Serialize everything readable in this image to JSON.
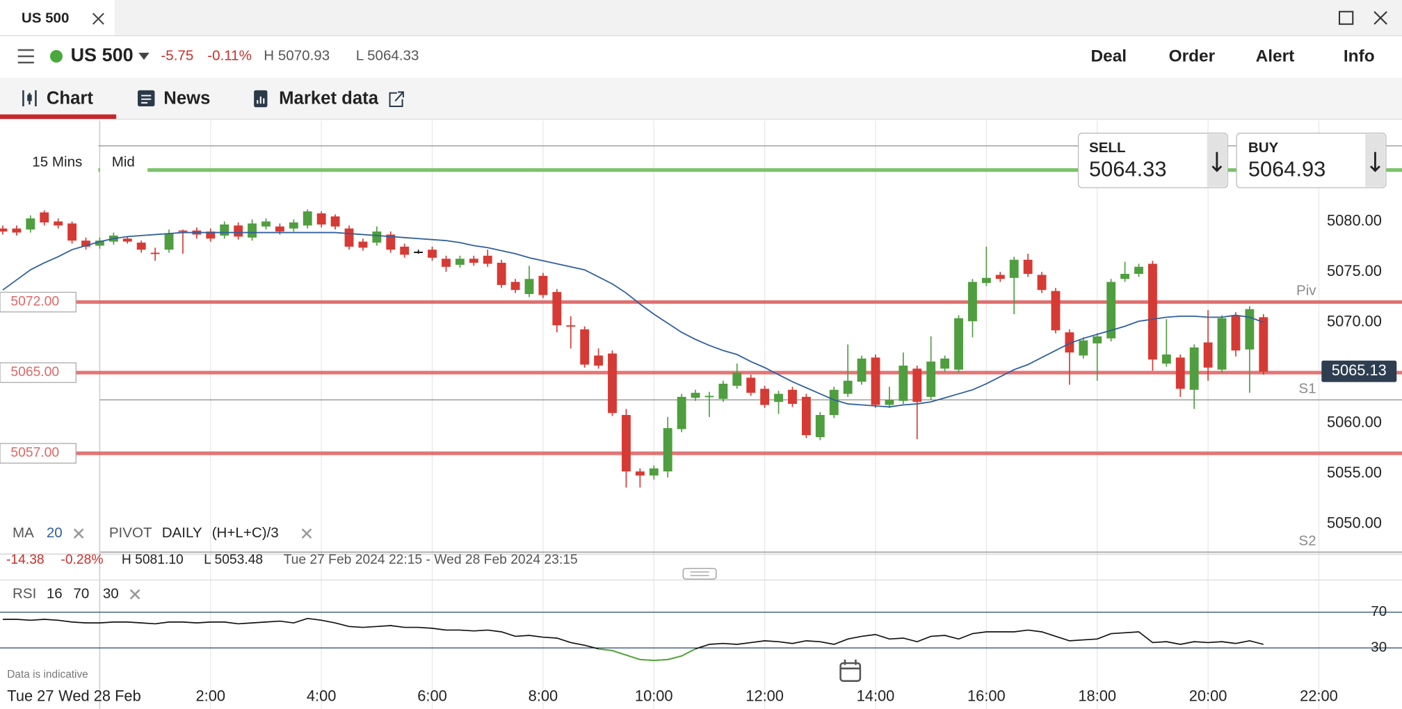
{
  "window": {
    "tab": "US 500"
  },
  "header": {
    "instrument": "US 500",
    "change": "-5.75",
    "change_pct": "-0.11%",
    "high": "H 5070.93",
    "low": "L 5064.33",
    "actions": [
      "Deal",
      "Order",
      "Alert",
      "Info"
    ]
  },
  "tabs": [
    "Chart",
    "News",
    "Market data"
  ],
  "controls": {
    "interval": "15 Mins",
    "price": "Mid"
  },
  "quote": {
    "sell_label": "SELL",
    "sell": "5064.33",
    "buy_label": "BUY",
    "buy": "5064.93"
  },
  "footer_note": "Data is indicative",
  "chart_data": {
    "type": "candlestick",
    "x": [
      -1.75,
      -1.5,
      -1.25,
      -1,
      -0.75,
      -0.5,
      -0.25,
      0,
      0.25,
      0.5,
      0.75,
      1,
      1.25,
      1.5,
      1.75,
      2,
      2.25,
      2.5,
      2.75,
      3,
      3.25,
      3.5,
      3.75,
      4,
      4.25,
      4.5,
      4.75,
      5,
      5.25,
      5.5,
      5.75,
      6,
      6.25,
      6.5,
      6.75,
      7,
      7.25,
      7.5,
      7.75,
      8,
      8.25,
      8.5,
      8.75,
      9,
      9.25,
      9.5,
      9.75,
      10,
      10.25,
      10.5,
      10.75,
      11,
      11.25,
      11.5,
      11.75,
      12,
      12.25,
      12.5,
      12.75,
      13,
      13.25,
      13.5,
      13.75,
      14,
      14.25,
      14.5,
      14.75,
      15,
      15.25,
      15.5,
      15.75,
      16,
      16.25,
      16.5,
      16.75,
      17,
      17.25,
      17.5,
      17.75,
      18,
      18.25,
      18.5,
      18.75,
      19,
      19.25,
      19.5,
      19.75,
      20,
      20.25,
      20.5,
      20.75,
      21
    ],
    "open": [
      5079.3,
      5079.3,
      5079.2,
      5080.9,
      5080.0,
      5079.8,
      5078.1,
      5077.6,
      5078.0,
      5078.3,
      5077.9,
      5076.9,
      5077.2,
      5079.1,
      5079.1,
      5079.0,
      5078.6,
      5079.6,
      5078.4,
      5079.5,
      5079.5,
      5079.3,
      5079.6,
      5080.8,
      5080.5,
      5079.3,
      5078.0,
      5077.9,
      5078.7,
      5077.5,
      5077.0,
      5077.2,
      5076.3,
      5075.7,
      5076.3,
      5076.6,
      5075.9,
      5074.0,
      5072.8,
      5074.6,
      5073.0,
      5069.7,
      5069.3,
      5066.7,
      5066.9,
      5060.8,
      5055.2,
      5054.8,
      5055.2,
      5059.4,
      5062.5,
      5062.6,
      5062.4,
      5063.7,
      5064.5,
      5063.4,
      5062.1,
      5063.3,
      5062.6,
      5058.6,
      5060.8,
      5062.9,
      5064.1,
      5066.5,
      5061.8,
      5062.2,
      5065.4,
      5062.6,
      5065.4,
      5065.3,
      5070.1,
      5073.9,
      5074.7,
      5074.4,
      5076.2,
      5074.7,
      5073.1,
      5069.0,
      5066.7,
      5067.9,
      5068.4,
      5074.3,
      5074.8,
      5075.8,
      5065.9,
      5066.5,
      5063.3,
      5068.0,
      5065.3,
      5070.7,
      5067.3,
      5070.5
    ],
    "high": [
      5079.6,
      5079.6,
      5080.6,
      5081.1,
      5080.3,
      5080.0,
      5078.4,
      5078.4,
      5078.9,
      5078.5,
      5078.1,
      5077.4,
      5079.2,
      5079.2,
      5079.4,
      5079.3,
      5080.0,
      5079.9,
      5080.2,
      5080.3,
      5079.8,
      5080.2,
      5081.2,
      5081.0,
      5080.7,
      5079.6,
      5078.3,
      5079.5,
      5079.0,
      5077.8,
      5077.2,
      5077.5,
      5076.6,
      5076.6,
      5076.6,
      5077.2,
      5076.2,
      5074.3,
      5075.6,
      5074.9,
      5073.3,
      5070.6,
      5069.6,
      5067.4,
      5067.2,
      5061.4,
      5055.5,
      5055.8,
      5060.6,
      5062.9,
      5063.3,
      5063.1,
      5064.2,
      5065.9,
      5064.8,
      5063.7,
      5063.2,
      5063.6,
      5062.9,
      5061.1,
      5063.6,
      5067.8,
      5066.7,
      5066.8,
      5063.6,
      5067.0,
      5065.7,
      5068.6,
      5066.7,
      5070.7,
      5074.3,
      5077.5,
      5075.0,
      5076.5,
      5076.8,
      5075.0,
      5073.4,
      5069.3,
      5068.5,
      5068.9,
      5074.3,
      5076.0,
      5075.8,
      5076.1,
      5070.3,
      5066.8,
      5067.8,
      5071.2,
      5070.7,
      5071.0,
      5071.6,
      5070.8
    ],
    "low": [
      5078.7,
      5078.6,
      5078.9,
      5079.6,
      5079.3,
      5077.8,
      5077.2,
      5077.3,
      5077.7,
      5077.8,
      5076.9,
      5076.1,
      5076.9,
      5076.8,
      5078.3,
      5078.0,
      5078.3,
      5078.2,
      5078.1,
      5079.2,
      5078.7,
      5079.0,
      5079.3,
      5079.4,
      5079.2,
      5077.2,
      5077.1,
      5077.6,
      5076.9,
      5076.4,
      5076.8,
      5076.1,
      5075.0,
      5075.4,
      5075.6,
      5075.5,
      5073.4,
      5072.9,
      5072.5,
      5072.4,
      5069.0,
      5067.4,
      5065.5,
      5065.4,
      5060.7,
      5053.6,
      5053.6,
      5054.4,
      5054.6,
      5059.1,
      5062.2,
      5060.6,
      5062.1,
      5063.4,
      5062.7,
      5061.5,
      5060.9,
      5061.6,
      5058.5,
      5058.3,
      5060.5,
      5062.6,
      5063.8,
      5061.5,
      5061.5,
      5061.9,
      5058.4,
      5062.3,
      5065.1,
      5065.0,
      5068.5,
      5073.6,
      5074.0,
      5070.8,
      5074.5,
      5072.9,
      5068.9,
      5063.8,
      5066.4,
      5064.2,
      5068.1,
      5074.0,
      5074.5,
      5065.2,
      5065.6,
      5062.6,
      5061.4,
      5064.2,
      5065.0,
      5066.6,
      5063.0,
      5064.8
    ],
    "close": [
      5079.0,
      5078.9,
      5080.3,
      5079.9,
      5079.6,
      5078.1,
      5077.5,
      5078.1,
      5078.6,
      5078.0,
      5077.2,
      5076.8,
      5078.8,
      5079.0,
      5078.7,
      5078.3,
      5079.7,
      5078.5,
      5079.8,
      5080.0,
      5079.0,
      5079.9,
      5081.0,
      5079.7,
      5079.5,
      5077.5,
      5077.4,
      5079.0,
      5077.2,
      5076.7,
      5077.0,
      5076.4,
      5075.5,
      5076.3,
      5075.9,
      5075.8,
      5073.7,
      5073.2,
      5074.3,
      5072.7,
      5069.7,
      5069.6,
      5065.8,
      5065.7,
      5061.0,
      5055.2,
      5054.8,
      5055.5,
      5059.5,
      5062.6,
      5063.0,
      5062.7,
      5063.9,
      5065.0,
      5063.0,
      5061.8,
      5062.9,
      5061.9,
      5058.8,
      5060.8,
      5063.3,
      5064.2,
      5066.4,
      5061.8,
      5062.3,
      5065.7,
      5062.1,
      5066.1,
      5066.4,
      5070.4,
      5074.0,
      5074.4,
      5074.3,
      5076.2,
      5074.8,
      5073.2,
      5069.2,
      5067.0,
      5068.2,
      5068.6,
      5074.0,
      5074.8,
      5075.5,
      5066.3,
      5066.8,
      5063.4,
      5067.5,
      5065.5,
      5070.4,
      5067.2,
      5071.3,
      5065.1
    ],
    "up_color": "#4f9e3f",
    "down_color": "#d63a34",
    "xlim": [
      -1.8,
      23.5
    ],
    "xticks": [
      {
        "value": 0,
        "label": "Wed 28 Feb"
      },
      {
        "value": 2,
        "label": "2:00"
      },
      {
        "value": 4,
        "label": "4:00"
      },
      {
        "value": 6,
        "label": "6:00"
      },
      {
        "value": 8,
        "label": "8:00"
      },
      {
        "value": 10,
        "label": "10:00"
      },
      {
        "value": 12,
        "label": "12:00"
      },
      {
        "value": 14,
        "label": "14:00"
      },
      {
        "value": 16,
        "label": "16:00"
      },
      {
        "value": 18,
        "label": "18:00"
      },
      {
        "value": 20,
        "label": "20:00"
      },
      {
        "value": 22,
        "label": "22:00"
      }
    ],
    "x_start_label": "Tue 27",
    "xgrid": true,
    "ylim": [
      5047,
      5090
    ],
    "yticks": [
      {
        "value": 5050,
        "label": "5050.00"
      },
      {
        "value": 5055,
        "label": "5055.00"
      },
      {
        "value": 5060,
        "label": "5060.00"
      },
      {
        "value": 5065,
        "label": "5065.00"
      },
      {
        "value": 5070,
        "label": "5070.00"
      },
      {
        "value": 5075,
        "label": "5075.00"
      },
      {
        "value": 5080,
        "label": "5080.00"
      }
    ],
    "ma": {
      "label": "MA",
      "period": 20,
      "color": "#2f5f9e",
      "values": [
        5073.2,
        5074.2,
        5075.2,
        5075.9,
        5076.5,
        5077.2,
        5077.6,
        5078.0,
        5078.3,
        5078.5,
        5078.6,
        5078.7,
        5078.8,
        5078.9,
        5078.9,
        5078.9,
        5078.9,
        5078.9,
        5078.9,
        5078.9,
        5078.9,
        5078.9,
        5078.9,
        5078.9,
        5078.9,
        5078.8,
        5078.7,
        5078.6,
        5078.5,
        5078.4,
        5078.3,
        5078.2,
        5078.1,
        5077.9,
        5077.6,
        5077.4,
        5077.1,
        5076.8,
        5076.4,
        5076.1,
        5075.8,
        5075.5,
        5075.2,
        5074.5,
        5073.8,
        5072.9,
        5071.8,
        5070.8,
        5069.9,
        5069.0,
        5068.3,
        5067.7,
        5067.2,
        5066.8,
        5066.1,
        5065.5,
        5064.8,
        5064.1,
        5063.5,
        5062.9,
        5062.3,
        5061.9,
        5061.8,
        5061.7,
        5061.6,
        5061.8,
        5061.9,
        5062.1,
        5062.5,
        5062.9,
        5063.3,
        5063.9,
        5064.6,
        5065.3,
        5065.8,
        5066.5,
        5067.2,
        5067.9,
        5068.4,
        5068.8,
        5069.2,
        5069.6,
        5070.1,
        5070.3,
        5070.5,
        5070.6,
        5070.6,
        5070.5,
        5070.5,
        5070.7,
        5070.5,
        5070.0
      ]
    },
    "pivot": {
      "label": "PIVOT",
      "period": "DAILY",
      "formula": "(H+L+C)/3",
      "color": "#8a8a8a",
      "lines": [
        {
          "value": 5072,
          "label": "Piv"
        },
        {
          "value": 5062.3,
          "label": "S1"
        },
        {
          "value": 5047.2,
          "label": "S2"
        }
      ]
    },
    "extra_lines": [
      {
        "value": 5087.5,
        "color": "#9a9a9a"
      },
      {
        "value": 5085.1,
        "color": "#7cc36a"
      }
    ],
    "levels": [
      {
        "value": 5072,
        "label": "5072.00"
      },
      {
        "value": 5065,
        "label": "5065.00"
      },
      {
        "value": 5057,
        "label": "5057.00"
      }
    ],
    "level_color": "#e06666",
    "last": {
      "value": 5065.13,
      "label": "5065.13"
    },
    "stats": {
      "change": "-14.38",
      "change_pct": "-0.28%",
      "high": "H 5081.10",
      "low": "L 5053.48",
      "range": "Tue 27 Feb 2024 22:15 - Wed 28 Feb 2024 23:15"
    },
    "rsi": {
      "label": "RSI",
      "period": 16,
      "upper": 70,
      "lower": 30,
      "color": "#111111",
      "low_color": "#58a83e",
      "ylim": [
        -16,
        106
      ],
      "yticks": [
        30,
        70
      ],
      "values": [
        62,
        62,
        61,
        62,
        61,
        59,
        58,
        58,
        59,
        59,
        58,
        57,
        59,
        59,
        58,
        59,
        59,
        57,
        58,
        59,
        60,
        58,
        63,
        61,
        58,
        54,
        53,
        54,
        55,
        53,
        53,
        52,
        50,
        50,
        49,
        50,
        48,
        43,
        44,
        42,
        41,
        36,
        33,
        29,
        27,
        22,
        17,
        16,
        17,
        21,
        29,
        34,
        35,
        34,
        36,
        38,
        37,
        35,
        38,
        37,
        34,
        40,
        43,
        45,
        40,
        41,
        37,
        43,
        44,
        40,
        46,
        48,
        48,
        48,
        50,
        48,
        43,
        38,
        39,
        40,
        46,
        47,
        48,
        36,
        37,
        34,
        37,
        36,
        37,
        35,
        38,
        34
      ]
    }
  }
}
